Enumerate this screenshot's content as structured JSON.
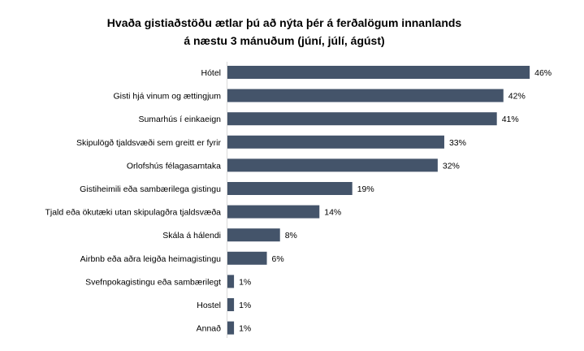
{
  "chart_data": {
    "type": "bar",
    "orientation": "horizontal",
    "title_lines": [
      "Hvaða gistiaðstöðu ætlar þú að nýta þér á ferðalögum innanlands",
      "á næstu 3 mánuðum (júní, júlí, ágúst)"
    ],
    "categories": [
      "Hótel",
      "Gisti hjá vinum og ættingjum",
      "Sumarhús í einkaeign",
      "Skipulögð tjaldsvæði sem greitt er fyrir",
      "Orlofshús félagasamtaka",
      "Gistiheimili eða sambærilega gistingu",
      "Tjald eða ökutæki utan skipulagðra tjaldsvæða",
      "Skála á hálendi",
      "Airbnb eða aðra leigða heimagistingu",
      "Svefnpokagistingu eða sambærilegt",
      "Hostel",
      "Annað"
    ],
    "values": [
      46,
      42,
      41,
      33,
      32,
      19,
      14,
      8,
      6,
      1,
      1,
      1
    ],
    "labels": [
      "46%",
      "42%",
      "41%",
      "33%",
      "32%",
      "19%",
      "14%",
      "8%",
      "6%",
      "1%",
      "1%",
      "1%"
    ],
    "unit": "%",
    "xlim": [
      0,
      48
    ],
    "grid": false,
    "legend": "none",
    "bar_color": "#44546a"
  }
}
